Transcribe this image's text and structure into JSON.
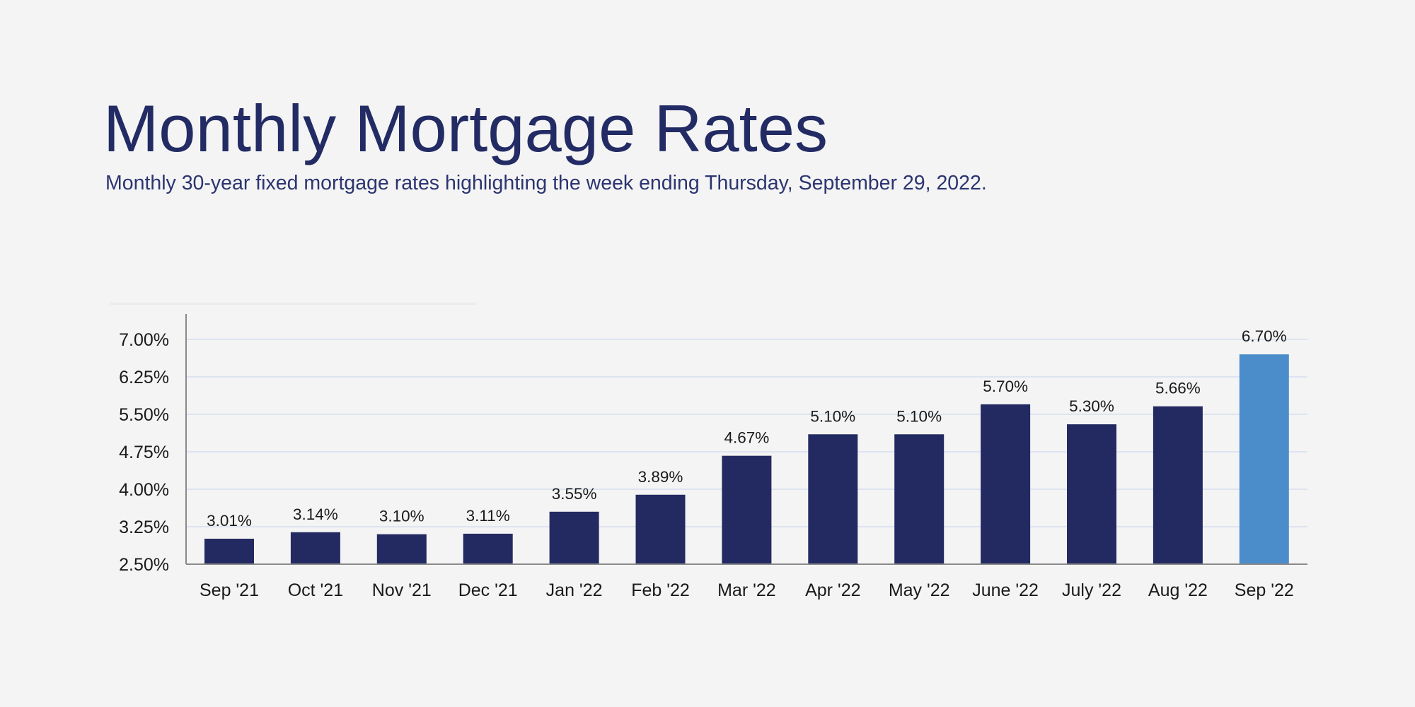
{
  "chart_data": {
    "type": "bar",
    "title": "Monthly Mortgage Rates",
    "subtitle": "Monthly 30-year fixed mortgage rates highlighting the week ending Thursday, September 29, 2022.",
    "categories": [
      "Sep '21",
      "Oct '21",
      "Nov '21",
      "Dec '21",
      "Jan '22",
      "Feb '22",
      "Mar '22",
      "Apr '22",
      "May '22",
      "June '22",
      "July '22",
      "Aug '22",
      "Sep '22"
    ],
    "values": [
      3.01,
      3.14,
      3.1,
      3.11,
      3.55,
      3.89,
      4.67,
      5.1,
      5.1,
      5.7,
      5.3,
      5.66,
      6.7
    ],
    "data_labels": [
      "3.01%",
      "3.14%",
      "3.10%",
      "3.11%",
      "3.55%",
      "3.89%",
      "4.67%",
      "5.10%",
      "5.10%",
      "5.70%",
      "5.30%",
      "5.66%",
      "6.70%"
    ],
    "yticks": [
      2.5,
      3.25,
      4.0,
      4.75,
      5.5,
      6.25,
      7.0
    ],
    "ytick_labels": [
      "2.50%",
      "3.25%",
      "4.00%",
      "4.75%",
      "5.50%",
      "6.25%",
      "7.00%"
    ],
    "ylim": [
      2.5,
      7.0
    ],
    "xlabel": "",
    "ylabel": "",
    "grid": "horizontal",
    "legend": "none",
    "highlight_index": 12,
    "colors": {
      "bar": "#232a62",
      "highlight": "#4b8dcb",
      "grid": "#dde3f0",
      "title": "#232b64",
      "background": "#f4f4f4"
    }
  }
}
